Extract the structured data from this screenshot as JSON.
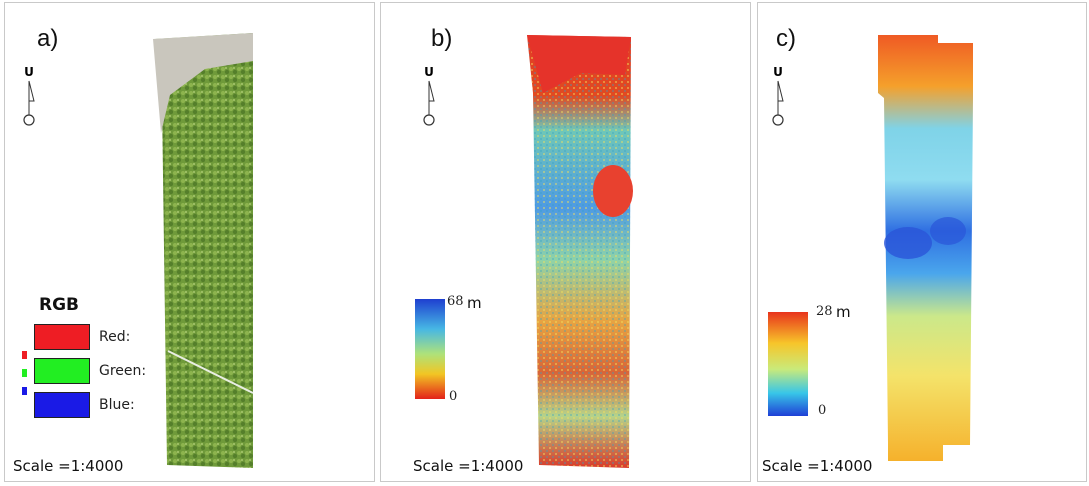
{
  "panels": [
    {
      "label": "a)",
      "scale": "Scale =1:4000",
      "north": "U"
    },
    {
      "label": "b)",
      "scale": "Scale =1:4000",
      "north": "U"
    },
    {
      "label": "c)",
      "scale": "Scale =1:4000",
      "north": "U"
    }
  ],
  "legend_rgb": {
    "title": "RGB",
    "items": [
      {
        "label": "Red:",
        "color": "#ee1d24"
      },
      {
        "label": "Green:",
        "color": "#22ee22"
      },
      {
        "label": "Blue:",
        "color": "#1a1ae6"
      }
    ]
  },
  "legend_b": {
    "max": "68",
    "min": "0",
    "unit": "m"
  },
  "legend_c": {
    "max": "28",
    "min": "0",
    "unit": "m"
  },
  "icons": [
    "north-arrow-icon"
  ]
}
